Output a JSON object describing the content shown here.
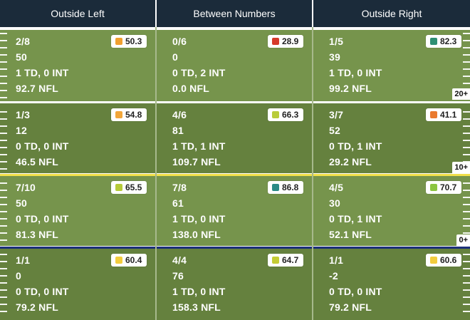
{
  "header": {
    "columns": [
      "Outside Left",
      "Between Numbers",
      "Outside Right"
    ]
  },
  "yard_labels": [
    "20+",
    "10+",
    "0+"
  ],
  "rows": [
    [
      {
        "comp_att": "2/8",
        "yards": "50",
        "td_int": "1 TD, 0 INT",
        "rating": "92.7 NFL",
        "grade": "50.3",
        "grade_color": "#f0a030"
      },
      {
        "comp_att": "0/6",
        "yards": "0",
        "td_int": "0 TD, 2 INT",
        "rating": "0.0 NFL",
        "grade": "28.9",
        "grade_color": "#d63a2a"
      },
      {
        "comp_att": "1/5",
        "yards": "39",
        "td_int": "1 TD, 0 INT",
        "rating": "99.2 NFL",
        "grade": "82.3",
        "grade_color": "#2e8f73"
      }
    ],
    [
      {
        "comp_att": "1/3",
        "yards": "12",
        "td_int": "0 TD, 0 INT",
        "rating": "46.5 NFL",
        "grade": "54.8",
        "grade_color": "#f2a63a"
      },
      {
        "comp_att": "4/6",
        "yards": "81",
        "td_int": "1 TD, 1 INT",
        "rating": "109.7 NFL",
        "grade": "66.3",
        "grade_color": "#b9cc3a"
      },
      {
        "comp_att": "3/7",
        "yards": "52",
        "td_int": "0 TD, 1 INT",
        "rating": "29.2 NFL",
        "grade": "41.1",
        "grade_color": "#ea7a2e"
      }
    ],
    [
      {
        "comp_att": "7/10",
        "yards": "50",
        "td_int": "0 TD, 0 INT",
        "rating": "81.3 NFL",
        "grade": "65.5",
        "grade_color": "#b6ca38"
      },
      {
        "comp_att": "7/8",
        "yards": "61",
        "td_int": "1 TD, 0 INT",
        "rating": "138.0 NFL",
        "grade": "86.8",
        "grade_color": "#2a8a86"
      },
      {
        "comp_att": "4/5",
        "yards": "30",
        "td_int": "0 TD, 1 INT",
        "rating": "52.1 NFL",
        "grade": "70.7",
        "grade_color": "#8cc540"
      }
    ],
    [
      {
        "comp_att": "1/1",
        "yards": "0",
        "td_int": "0 TD, 0 INT",
        "rating": "79.2 NFL",
        "grade": "60.4",
        "grade_color": "#f2cc3e"
      },
      {
        "comp_att": "4/4",
        "yards": "76",
        "td_int": "1 TD, 0 INT",
        "rating": "158.3 NFL",
        "grade": "64.7",
        "grade_color": "#c4cc34"
      },
      {
        "comp_att": "1/1",
        "yards": "-2",
        "td_int": "0 TD, 0 INT",
        "rating": "79.2 NFL",
        "grade": "60.6",
        "grade_color": "#f2cc3e"
      }
    ]
  ],
  "divider_colors": [
    "#ffffff",
    "#ffffff",
    "#f1e04a",
    "#1b2f7a"
  ]
}
